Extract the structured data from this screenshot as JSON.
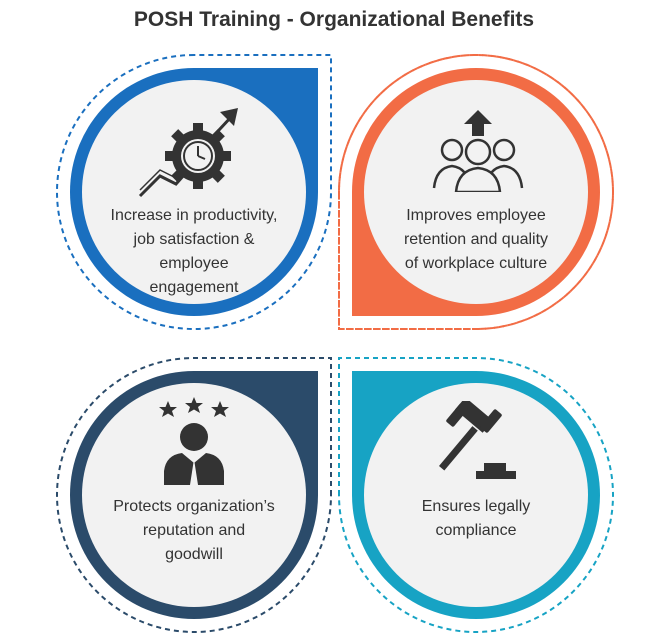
{
  "title": "POSH Training - Organizational Benefits",
  "quadrants": [
    {
      "lines": [
        "Increase in productivity,",
        "job satisfaction &",
        "employee",
        "engagement"
      ],
      "icon": "gear-clock-growth-icon",
      "color": "#1a6fbf"
    },
    {
      "lines": [
        "Improves employee",
        "retention and quality",
        "of workplace culture"
      ],
      "icon": "people-group-icon",
      "color": "#f26c45"
    },
    {
      "lines": [
        "Protects organization’s",
        "reputation and",
        "goodwill"
      ],
      "icon": "person-stars-icon",
      "color": "#2b4b6a"
    },
    {
      "lines": [
        "Ensures legally",
        "compliance"
      ],
      "icon": "gavel-icon",
      "color": "#17a3c4"
    }
  ]
}
